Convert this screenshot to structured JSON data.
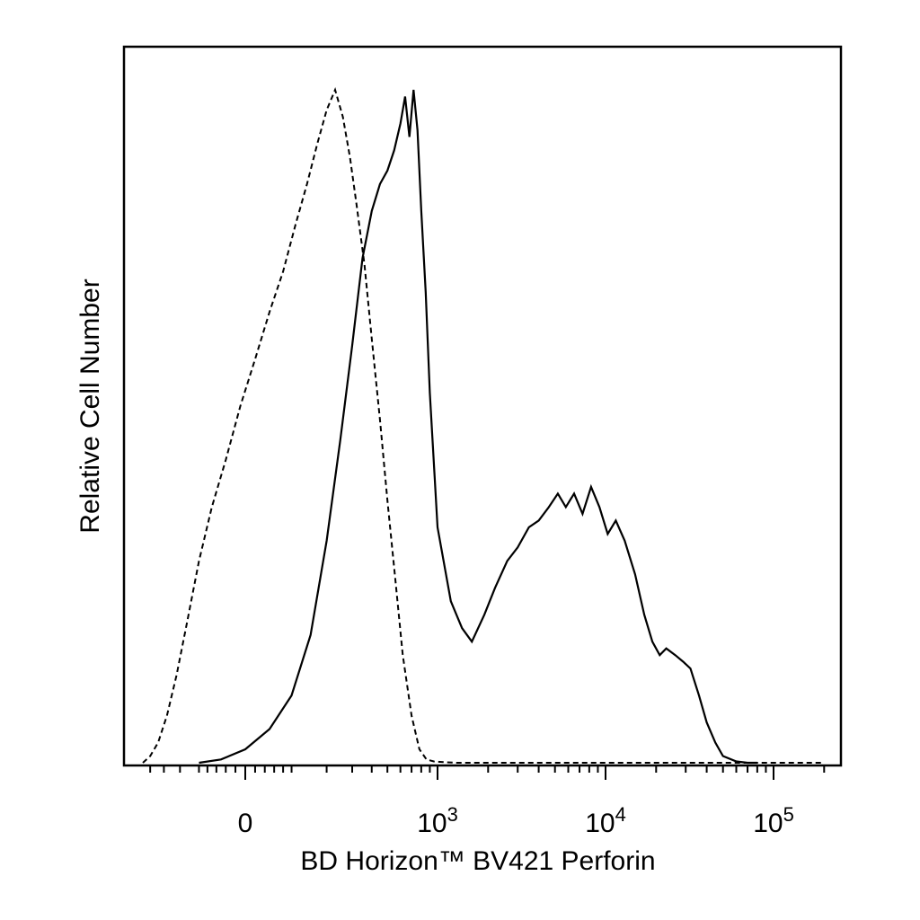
{
  "chart_data": {
    "type": "line",
    "title": "",
    "xlabel": "BD Horizon™ BV421 Perforin",
    "ylabel": "Relative Cell Number",
    "x_scale": "biexponential",
    "xlim": [
      -300,
      200000
    ],
    "ylim": [
      0,
      1
    ],
    "grid": false,
    "legend": "none",
    "x_ticks": [
      {
        "value": 0,
        "base": "0",
        "exp": ""
      },
      {
        "value": 1000,
        "base": "10",
        "exp": "3"
      },
      {
        "value": 10000,
        "base": "10",
        "exp": "4"
      },
      {
        "value": 100000,
        "base": "10",
        "exp": "5"
      }
    ],
    "series": [
      {
        "style": "dashed",
        "color": "#000000",
        "x": [
          -280,
          -250,
          -220,
          -190,
          -160,
          -130,
          -100,
          -70,
          -40,
          -10,
          20,
          50,
          80,
          110,
          140,
          170,
          200,
          230,
          260,
          290,
          320,
          360,
          400,
          450,
          500,
          560,
          620,
          700,
          780,
          860,
          950,
          1100,
          1300,
          1600,
          2000,
          3000,
          5000,
          10000,
          30000,
          100000,
          200000
        ],
        "y": [
          0.0,
          0.01,
          0.03,
          0.07,
          0.13,
          0.21,
          0.3,
          0.38,
          0.45,
          0.53,
          0.6,
          0.67,
          0.73,
          0.8,
          0.86,
          0.92,
          0.97,
          1.0,
          0.96,
          0.9,
          0.83,
          0.74,
          0.63,
          0.51,
          0.39,
          0.27,
          0.16,
          0.07,
          0.02,
          0.005,
          0.002,
          0.001,
          0.0,
          0.0,
          0.0,
          0.0,
          0.0,
          0.0,
          0.0,
          0.0,
          0.0
        ]
      },
      {
        "style": "solid",
        "color": "#000000",
        "x": [
          -100,
          -50,
          0,
          50,
          100,
          150,
          200,
          250,
          300,
          350,
          400,
          450,
          500,
          550,
          600,
          640,
          680,
          720,
          760,
          800,
          850,
          900,
          1000,
          1200,
          1400,
          1600,
          1900,
          2200,
          2600,
          3000,
          3500,
          4000,
          4600,
          5200,
          5800,
          6500,
          7300,
          8200,
          9200,
          10300,
          11500,
          13000,
          15000,
          17000,
          19000,
          21000,
          23000,
          26000,
          29000,
          32000,
          36000,
          40000,
          45000,
          50000,
          60000,
          70000,
          80000
        ],
        "y": [
          0.0,
          0.005,
          0.02,
          0.05,
          0.1,
          0.19,
          0.33,
          0.48,
          0.62,
          0.75,
          0.82,
          0.86,
          0.88,
          0.91,
          0.95,
          0.99,
          0.93,
          1.0,
          0.94,
          0.82,
          0.7,
          0.55,
          0.35,
          0.24,
          0.2,
          0.18,
          0.22,
          0.26,
          0.3,
          0.32,
          0.35,
          0.36,
          0.38,
          0.4,
          0.38,
          0.4,
          0.37,
          0.41,
          0.38,
          0.34,
          0.36,
          0.33,
          0.28,
          0.22,
          0.18,
          0.16,
          0.17,
          0.16,
          0.15,
          0.14,
          0.1,
          0.06,
          0.03,
          0.01,
          0.002,
          0.0,
          0.0
        ]
      }
    ]
  }
}
